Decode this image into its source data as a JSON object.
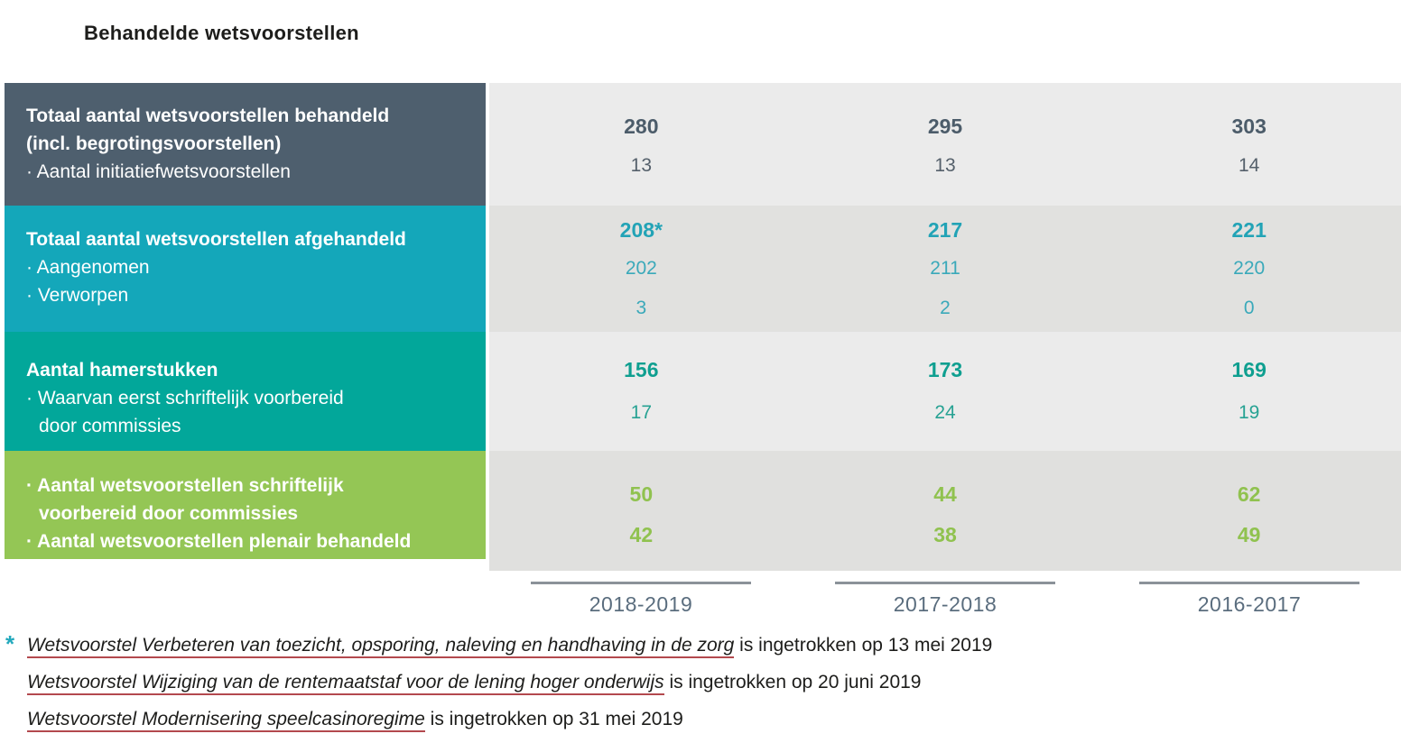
{
  "title": "Behandelde wetsvoorstellen",
  "colors": {
    "row_behandeld_bg": "#4e5f6e",
    "row_afgehandeld_bg": "#14a7ba",
    "row_hamerstukken_bg": "#02a79a",
    "row_schriftelijk_bg": "#94c655",
    "data_bg_light": "#ebebeb",
    "data_bg_dark": "#e1e1df",
    "footnote_underline": "#b3494e",
    "footnote_asterisk": "#23a9bd",
    "year_label": "#5a6d7e"
  },
  "columns": [
    "2018-2019",
    "2017-2018",
    "2016-2017"
  ],
  "rows": [
    {
      "name": "totaal-behandeld",
      "lines": [
        "Totaal aantal wetsvoorstellen behandeld",
        "(incl. begrotingsvoorstellen)",
        "· Aantal initiatiefwetsvoorstellen"
      ],
      "cols": [
        {
          "main": "280",
          "sub1": "13"
        },
        {
          "main": "295",
          "sub1": "13"
        },
        {
          "main": "303",
          "sub1": "14"
        }
      ]
    },
    {
      "name": "totaal-afgehandeld",
      "lines": [
        "Totaal aantal wetsvoorstellen afgehandeld",
        "· Aangenomen",
        "· Verworpen"
      ],
      "cols": [
        {
          "main": "208*",
          "sub1": "202",
          "sub2": "3"
        },
        {
          "main": "217",
          "sub1": "211",
          "sub2": "2"
        },
        {
          "main": "221",
          "sub1": "220",
          "sub2": "0"
        }
      ]
    },
    {
      "name": "hamerstukken",
      "lines": [
        "Aantal hamerstukken",
        "· Waarvan eerst schriftelijk voorbereid",
        "door commissies"
      ],
      "cols": [
        {
          "main": "156",
          "sub1": "17"
        },
        {
          "main": "173",
          "sub1": "24"
        },
        {
          "main": "169",
          "sub1": "19"
        }
      ]
    },
    {
      "name": "schriftelijk-plenair",
      "lines": [
        "· Aantal wetsvoorstellen schriftelijk",
        "voorbereid door commissies",
        "· Aantal wetsvoorstellen plenair behandeld"
      ],
      "cols": [
        {
          "main": "50",
          "sub1": "42"
        },
        {
          "main": "44",
          "sub1": "38"
        },
        {
          "main": "62",
          "sub1": "49"
        }
      ]
    }
  ],
  "footnote": {
    "marker": "*",
    "notes": [
      {
        "link": "Wetsvoorstel Verbeteren van toezicht, opsporing, naleving en handhaving in de zorg",
        "rest": " is ingetrokken op 13 mei 2019"
      },
      {
        "link": "Wetsvoorstel Wijziging van de rentemaatstaf voor de lening hoger onderwijs",
        "rest": " is ingetrokken op 20 juni 2019"
      },
      {
        "link": "Wetsvoorstel Modernisering speelcasinoregime",
        "rest": " is ingetrokken op 31 mei 2019"
      }
    ]
  }
}
